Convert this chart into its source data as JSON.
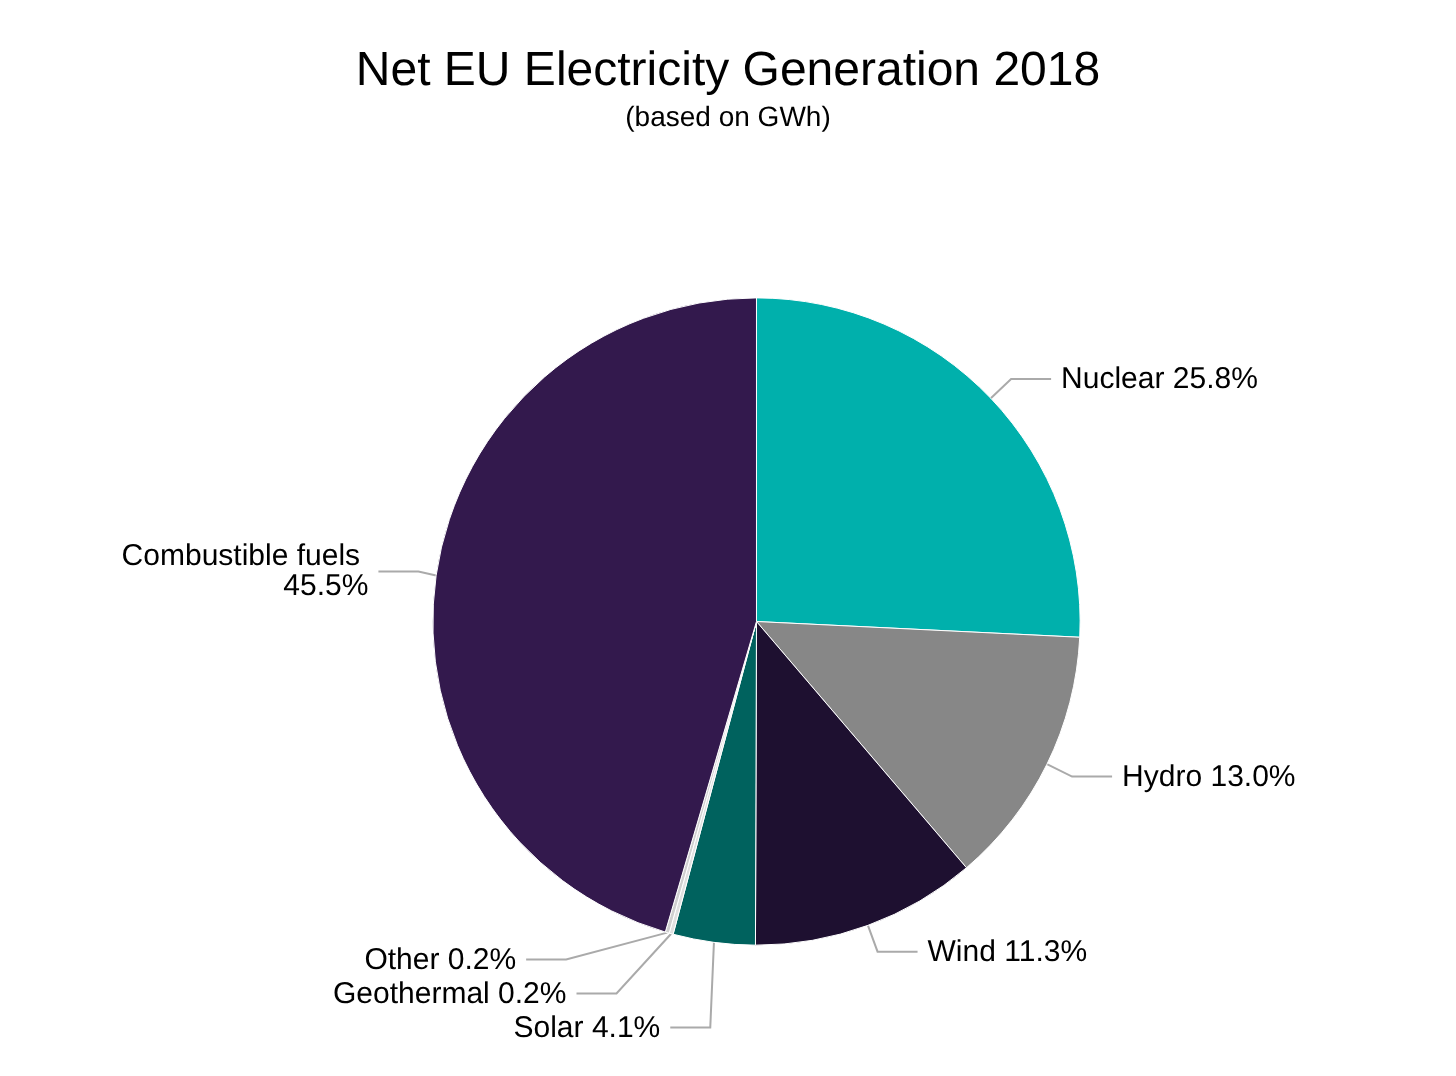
{
  "chart_data": {
    "type": "pie",
    "title": "Net EU Electricity Generation 2018",
    "subtitle": "(based on GWh)",
    "categories": [
      "Nuclear",
      "Hydro",
      "Wind",
      "Solar",
      "Geothermal",
      "Other",
      "Combustible fuels"
    ],
    "values": [
      25.8,
      13.0,
      11.3,
      4.1,
      0.2,
      0.2,
      45.5
    ],
    "value_labels": [
      "25.8%",
      "13.0%",
      "11.3%",
      "4.1%",
      "0.2%",
      "0.2%",
      "45.5%"
    ],
    "colors": [
      "#00b0ac",
      "#878787",
      "#1e1030",
      "#00625e",
      "#e0e0e0",
      "#cfcfcf",
      "#33194d"
    ],
    "legend": false
  }
}
